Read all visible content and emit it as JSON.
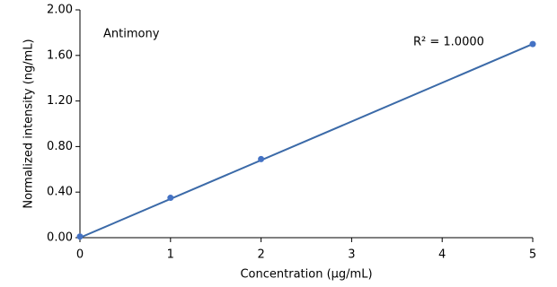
{
  "chart_data": {
    "type": "scatter",
    "annotations": [
      "Antimony",
      "R² = 1.0000"
    ],
    "x_label": "Concentration (µg/mL)",
    "y_label": "Normalized intensity (ng/mL)",
    "series": [
      {
        "color": "#4472c4",
        "x": [
          0,
          1,
          2,
          5
        ],
        "values": [
          0.01,
          0.35,
          0.69,
          1.7
        ]
      }
    ],
    "trendline": {
      "color": "#3b6aa8",
      "x": [
        0,
        5
      ],
      "values": [
        0,
        1.7
      ]
    },
    "xlim": [
      0,
      5
    ],
    "xticks": [
      0,
      1,
      2,
      3,
      4,
      5
    ],
    "ylim": [
      0,
      2
    ],
    "yticks": [
      {
        "value": 0,
        "label": "0.00"
      },
      {
        "value": 0.4,
        "label": "0.40"
      },
      {
        "value": 0.8,
        "label": "0.80"
      },
      {
        "value": 1.2,
        "label": "1.20"
      },
      {
        "value": 1.6,
        "label": "1.60"
      },
      {
        "value": 2,
        "label": "2.00"
      }
    ]
  }
}
